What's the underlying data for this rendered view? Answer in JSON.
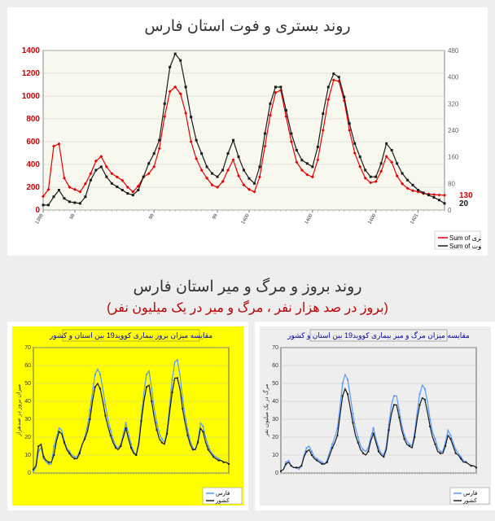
{
  "top_chart": {
    "title": "روند بستری و فوت استان فارس",
    "type": "line",
    "background_color": "#f8f8ee",
    "grid_color": "#cccccc",
    "border_color": "#888888",
    "left_axis": {
      "label_color": "#cc0000",
      "min": 0,
      "max": 1400,
      "step": 200
    },
    "right_axis": {
      "min": 0,
      "max": 480,
      "label_color": "#666666"
    },
    "series": [
      {
        "name": "Sum of بستری",
        "color": "#e60000",
        "marker": "diamond",
        "end_label": "130",
        "values": [
          120,
          180,
          560,
          580,
          280,
          200,
          180,
          160,
          230,
          320,
          430,
          470,
          380,
          320,
          290,
          260,
          200,
          160,
          210,
          290,
          320,
          380,
          540,
          820,
          1040,
          1080,
          1020,
          850,
          600,
          450,
          350,
          280,
          220,
          200,
          250,
          350,
          440,
          300,
          220,
          180,
          160,
          290,
          560,
          830,
          1030,
          1050,
          820,
          600,
          420,
          350,
          310,
          290,
          440,
          700,
          970,
          1140,
          1130,
          960,
          700,
          500,
          380,
          280,
          240,
          250,
          340,
          470,
          420,
          300,
          230,
          190,
          170,
          160,
          145,
          140,
          135,
          132,
          130
        ]
      },
      {
        "name": "Sum of فوت",
        "color": "#1a1a1a",
        "marker": "square",
        "end_label": "20",
        "values": [
          15,
          15,
          40,
          60,
          35,
          25,
          22,
          20,
          40,
          90,
          120,
          130,
          100,
          80,
          70,
          60,
          50,
          45,
          60,
          100,
          140,
          170,
          210,
          320,
          430,
          470,
          450,
          370,
          280,
          210,
          170,
          130,
          110,
          100,
          120,
          170,
          210,
          160,
          120,
          95,
          80,
          130,
          230,
          320,
          370,
          370,
          300,
          230,
          180,
          150,
          140,
          130,
          190,
          290,
          370,
          410,
          400,
          340,
          260,
          200,
          160,
          120,
          100,
          100,
          140,
          200,
          180,
          140,
          110,
          90,
          75,
          60,
          52,
          45,
          38,
          30,
          20
        ]
      }
    ],
    "x_categories": [
      "1398",
      "",
      "",
      "",
      "",
      "",
      "99",
      "",
      "",
      "",
      "",
      "",
      "",
      "",
      "",
      "",
      "",
      "",
      "",
      "",
      "",
      "99",
      "",
      "",
      "",
      "",
      "",
      "",
      "",
      "",
      "",
      "",
      "",
      "99",
      "",
      "",
      "",
      "",
      "",
      "1400",
      "",
      "",
      "",
      "",
      "",
      "",
      "",
      "",
      "",
      "",
      "",
      "1400",
      "",
      "",
      "",
      "",
      "",
      "",
      "",
      "",
      "",
      "",
      "",
      "1400",
      "",
      "",
      "",
      "",
      "",
      "",
      "",
      "1401",
      "",
      "",
      "",
      "",
      ""
    ]
  },
  "bottom_section": {
    "title": "روند بروز و مرگ و میر استان فارس",
    "subtitle": "(بروز در صد هزار نفر ، مرگ و میر در یک میلیون نفر)"
  },
  "bottom_left": {
    "type": "line",
    "background_color": "#ffff00",
    "border_color": "#666666",
    "title": "مقایسه میزان بروز بیماری کووید19 بین استان و کشور",
    "ylabel": "میزان بروز در صدهزار",
    "y_min": 0,
    "y_max": 70,
    "series": [
      {
        "name": "فارس",
        "color": "#5599ff",
        "values": [
          1,
          3,
          12,
          14,
          8,
          6,
          5,
          5,
          15,
          20,
          25,
          24,
          18,
          14,
          12,
          10,
          9,
          9,
          12,
          16,
          20,
          26,
          35,
          45,
          55,
          58,
          55,
          47,
          38,
          30,
          24,
          19,
          15,
          14,
          16,
          22,
          28,
          22,
          16,
          12,
          10,
          18,
          32,
          45,
          55,
          57,
          47,
          36,
          28,
          22,
          19,
          17,
          24,
          38,
          52,
          62,
          63,
          55,
          42,
          32,
          24,
          18,
          14,
          13,
          18,
          28,
          26,
          20,
          15,
          12,
          10,
          9,
          8,
          7,
          6,
          6,
          5
        ]
      },
      {
        "name": "کشور",
        "color": "#1a1a1a",
        "values": [
          2,
          4,
          15,
          16,
          9,
          7,
          6,
          6,
          10,
          18,
          23,
          22,
          17,
          13,
          11,
          9,
          8,
          8,
          11,
          16,
          19,
          23,
          30,
          40,
          48,
          50,
          47,
          40,
          32,
          26,
          21,
          17,
          14,
          13,
          15,
          20,
          25,
          19,
          14,
          11,
          10,
          16,
          29,
          40,
          48,
          49,
          40,
          31,
          24,
          19,
          17,
          16,
          22,
          34,
          45,
          53,
          53,
          47,
          36,
          28,
          21,
          16,
          13,
          13,
          17,
          25,
          23,
          17,
          13,
          11,
          9,
          8,
          7,
          7,
          6,
          6,
          5
        ]
      }
    ]
  },
  "bottom_right": {
    "type": "line",
    "background_color": "#eeeeee",
    "border_color": "#666666",
    "title": "مقایسه میزان مرگ و میر بیماری کووید19 بین استان و کشور",
    "ylabel": "مرگ در یک میلیون نفر",
    "y_min": 0,
    "y_max": 70,
    "series": [
      {
        "name": "فارس",
        "color": "#5599ff",
        "values": [
          1,
          2,
          6,
          7,
          4,
          3,
          3,
          2,
          4,
          10,
          14,
          15,
          12,
          9,
          8,
          7,
          6,
          5,
          7,
          12,
          16,
          20,
          25,
          37,
          50,
          55,
          52,
          43,
          33,
          25,
          20,
          15,
          13,
          12,
          14,
          20,
          25,
          19,
          14,
          11,
          10,
          15,
          27,
          38,
          43,
          43,
          35,
          27,
          21,
          18,
          16,
          15,
          22,
          34,
          44,
          49,
          47,
          40,
          30,
          23,
          19,
          14,
          12,
          12,
          17,
          24,
          21,
          17,
          13,
          11,
          9,
          7,
          6,
          5,
          4,
          4,
          3
        ]
      },
      {
        "name": "کشور",
        "color": "#1a1a1a",
        "values": [
          1,
          2,
          5,
          6,
          4,
          3,
          3,
          3,
          4,
          9,
          12,
          13,
          10,
          8,
          7,
          6,
          5,
          5,
          6,
          10,
          14,
          17,
          21,
          32,
          43,
          47,
          44,
          36,
          28,
          21,
          17,
          13,
          11,
          10,
          12,
          18,
          22,
          17,
          12,
          10,
          9,
          13,
          24,
          33,
          38,
          38,
          31,
          24,
          19,
          16,
          15,
          14,
          20,
          30,
          38,
          42,
          41,
          34,
          26,
          20,
          16,
          12,
          11,
          11,
          15,
          21,
          19,
          15,
          11,
          10,
          8,
          6,
          6,
          5,
          4,
          4,
          3
        ]
      }
    ]
  }
}
